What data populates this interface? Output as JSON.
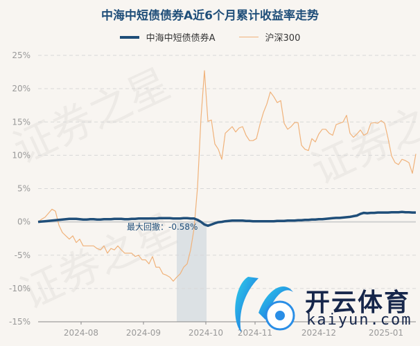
{
  "chart_data": {
    "type": "line",
    "title": "中海中短债债券A近6个月累计收益率走势",
    "xlabel": "",
    "ylabel": "",
    "x_tick_labels": [
      "2024-08",
      "2024-09",
      "2024-10",
      "2024-11",
      "2024-12",
      "2025-01"
    ],
    "y_tick_labels": [
      "25%",
      "20%",
      "15%",
      "10%",
      "5%",
      "0%",
      "-5%",
      "-10%",
      "-15%"
    ],
    "ylim": [
      -15,
      25
    ],
    "y_unit": "%",
    "grid": true,
    "legend_position": "top",
    "annotation": "最大回撤：-0.58%",
    "series": [
      {
        "name": "中海中短债债券A",
        "color": "#1f4e79",
        "values": [
          0.0,
          0.05,
          0.1,
          0.15,
          0.2,
          0.25,
          0.3,
          0.35,
          0.4,
          0.45,
          0.45,
          0.45,
          0.4,
          0.35,
          0.35,
          0.4,
          0.4,
          0.35,
          0.35,
          0.4,
          0.4,
          0.4,
          0.45,
          0.45,
          0.45,
          0.4,
          0.4,
          0.45,
          0.45,
          0.5,
          0.5,
          0.5,
          0.5,
          0.5,
          0.5,
          0.55,
          0.55,
          0.55,
          0.55,
          0.5,
          0.5,
          0.5,
          0.55,
          0.55,
          0.5,
          0.5,
          0.3,
          0.0,
          -0.4,
          -0.58,
          -0.4,
          -0.2,
          -0.05,
          0.0,
          0.1,
          0.15,
          0.2,
          0.2,
          0.2,
          0.2,
          0.15,
          0.15,
          0.1,
          0.1,
          0.1,
          0.1,
          0.1,
          0.1,
          0.1,
          0.15,
          0.15,
          0.15,
          0.2,
          0.2,
          0.2,
          0.25,
          0.25,
          0.3,
          0.3,
          0.35,
          0.35,
          0.4,
          0.4,
          0.45,
          0.5,
          0.55,
          0.6,
          0.6,
          0.65,
          0.7,
          0.75,
          0.85,
          0.95,
          1.2,
          1.35,
          1.3,
          1.35,
          1.35,
          1.4,
          1.4,
          1.4,
          1.4,
          1.45,
          1.45,
          1.45,
          1.5,
          1.45,
          1.45,
          1.4,
          1.4
        ]
      },
      {
        "name": "沪深300",
        "color": "#f0b27a",
        "values": [
          0,
          0.4,
          0.7,
          1.3,
          1.9,
          1.6,
          -0.5,
          -1.6,
          -2.1,
          -2.6,
          -2.1,
          -3.1,
          -2.6,
          -3.6,
          -3.6,
          -3.6,
          -3.6,
          -4.0,
          -4.2,
          -3.6,
          -4.7,
          -4.0,
          -4.2,
          -3.6,
          -4.2,
          -4.7,
          -4.7,
          -4.7,
          -5.2,
          -5.0,
          -5.7,
          -5.7,
          -6.3,
          -5.2,
          -6.8,
          -6.8,
          -7.8,
          -8.0,
          -8.3,
          -8.9,
          -8.3,
          -7.8,
          -6.8,
          -6.3,
          -4.2,
          -1.0,
          5.2,
          15.6,
          22.7,
          15.1,
          15.3,
          11.7,
          10.9,
          9.4,
          13.3,
          13.8,
          14.3,
          13.5,
          14.1,
          14.3,
          13.0,
          12.2,
          12.2,
          12.5,
          14.6,
          16.4,
          17.7,
          19.5,
          18.8,
          17.9,
          18.2,
          14.8,
          13.9,
          14.3,
          14.9,
          14.9,
          11.5,
          10.9,
          10.7,
          12.5,
          12.0,
          13.2,
          13.9,
          13.9,
          13.3,
          13.0,
          14.6,
          14.8,
          15.0,
          16.0,
          13.3,
          12.7,
          13.2,
          13.8,
          13.0,
          13.3,
          14.8,
          14.9,
          14.8,
          15.2,
          14.8,
          12.5,
          9.9,
          8.9,
          8.6,
          9.4,
          9.2,
          8.9,
          7.3,
          10.2
        ]
      }
    ]
  },
  "watermark": {
    "text": "证券之星",
    "logo_text": "开云体育",
    "logo_domain": "kaiyun.com"
  }
}
